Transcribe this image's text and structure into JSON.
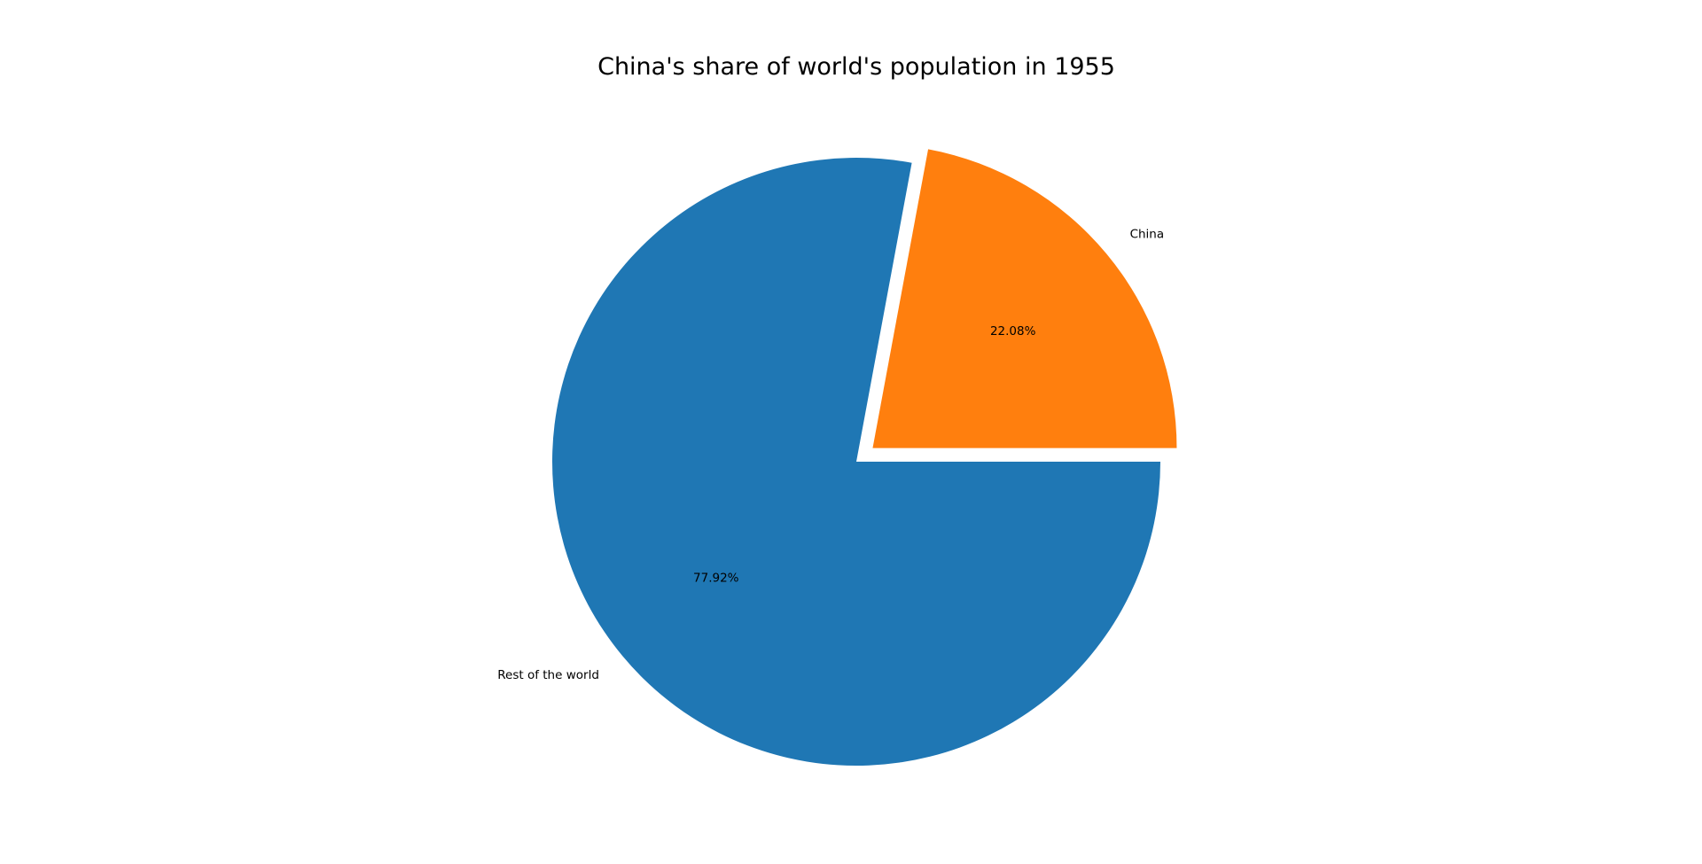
{
  "chart_data": {
    "type": "pie",
    "title": "China's share of world's population in 1955",
    "slices": [
      {
        "label": "China",
        "value": 22.08,
        "pct_label": "22.08%",
        "color": "#ff7f0e",
        "explode": 0.07
      },
      {
        "label": "Rest of the world",
        "value": 77.92,
        "pct_label": "77.92%",
        "color": "#1f77b4",
        "explode": 0
      }
    ],
    "start_angle": 0,
    "direction": "counterclockwise"
  }
}
